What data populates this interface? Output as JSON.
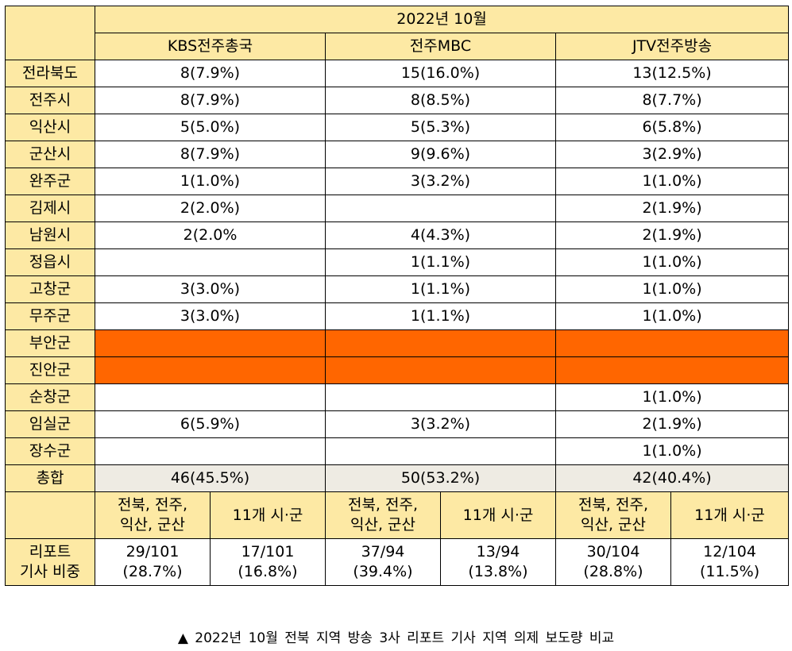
{
  "header": {
    "period": "2022년 10월",
    "stations": [
      "KBS전주총국",
      "전주MBC",
      "JTV전주방송"
    ]
  },
  "regions": [
    {
      "name": "전라북도",
      "kbs": "8(7.9%)",
      "mbc": "15(16.0%)",
      "jtv": "13(12.5%)"
    },
    {
      "name": "전주시",
      "kbs": "8(7.9%)",
      "mbc": "8(8.5%)",
      "jtv": "8(7.7%)"
    },
    {
      "name": "익산시",
      "kbs": "5(5.0%)",
      "mbc": "5(5.3%)",
      "jtv": "6(5.8%)"
    },
    {
      "name": "군산시",
      "kbs": "8(7.9%)",
      "mbc": "9(9.6%)",
      "jtv": "3(2.9%)"
    },
    {
      "name": "완주군",
      "kbs": "1(1.0%)",
      "mbc": "3(3.2%)",
      "jtv": "1(1.0%)"
    },
    {
      "name": "김제시",
      "kbs": "2(2.0%)",
      "mbc": "",
      "jtv": "2(1.9%)"
    },
    {
      "name": "남원시",
      "kbs": "2(2.0%",
      "mbc": "4(4.3%)",
      "jtv": "2(1.9%)"
    },
    {
      "name": "정읍시",
      "kbs": "",
      "mbc": "1(1.1%)",
      "jtv": "1(1.0%)"
    },
    {
      "name": "고창군",
      "kbs": "3(3.0%)",
      "mbc": "1(1.1%)",
      "jtv": "1(1.0%)"
    },
    {
      "name": "무주군",
      "kbs": "3(3.0%)",
      "mbc": "1(1.1%)",
      "jtv": "1(1.0%)"
    },
    {
      "name": "부안군",
      "kbs": "",
      "mbc": "",
      "jtv": "",
      "highlight": "#ff6600"
    },
    {
      "name": "진안군",
      "kbs": "",
      "mbc": "",
      "jtv": "",
      "highlight": "#ff6600"
    },
    {
      "name": "순창군",
      "kbs": "",
      "mbc": "",
      "jtv": "1(1.0%)"
    },
    {
      "name": "임실군",
      "kbs": "6(5.9%)",
      "mbc": "3(3.2%)",
      "jtv": "2(1.9%)"
    },
    {
      "name": "장수군",
      "kbs": "",
      "mbc": "",
      "jtv": "1(1.0%)"
    }
  ],
  "total": {
    "label": "총합",
    "kbs": "46(45.5%)",
    "mbc": "50(53.2%)",
    "jtv": "42(40.4%)"
  },
  "subheader": {
    "major_line1": "전북, 전주,",
    "major_line2": "익산, 군산",
    "minor": "11개 시·군"
  },
  "ratio": {
    "label_line1": "리포트",
    "label_line2": "기사 비중",
    "values": [
      {
        "count": "29/101",
        "pct": "(28.7%)"
      },
      {
        "count": "17/101",
        "pct": "(16.8%)"
      },
      {
        "count": "37/94",
        "pct": "(39.4%)"
      },
      {
        "count": "13/94",
        "pct": "(13.8%)"
      },
      {
        "count": "30/104",
        "pct": "(28.8%)"
      },
      {
        "count": "12/104",
        "pct": "(11.5%)"
      }
    ]
  },
  "caption": "▲ 2022년 10월 전북 지역 방송 3사 리포트 기사 지역 의제 보도량 비교",
  "colors": {
    "header_bg": "#fde9a4",
    "empty_region_bg": "#ff6600",
    "total_bg": "#eeebe3"
  }
}
